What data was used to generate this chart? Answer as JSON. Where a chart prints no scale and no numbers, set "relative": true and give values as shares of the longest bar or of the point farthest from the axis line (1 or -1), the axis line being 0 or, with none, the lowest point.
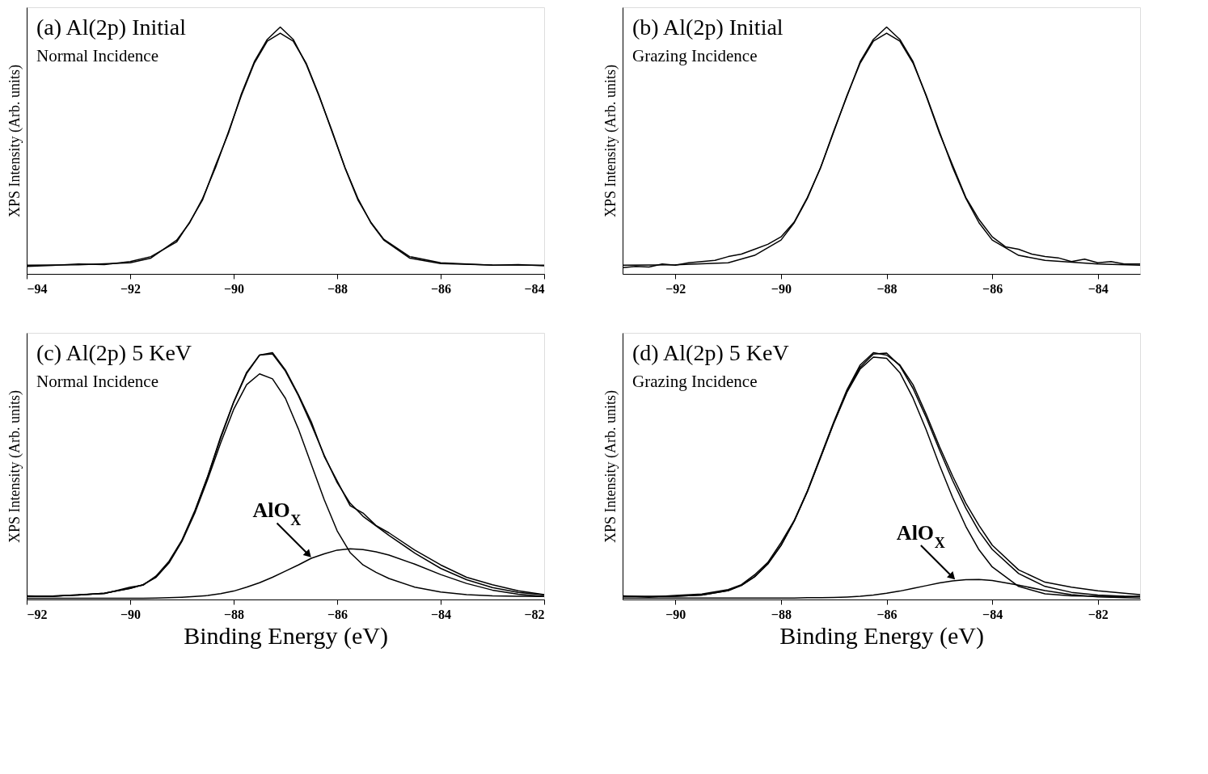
{
  "chart_data": [
    {
      "type": "line",
      "title": "(a) Al(2p)  Initial",
      "subtitle": "Normal Incidence",
      "ylabel": "XPS Intensity (Arb. units)",
      "relative": true,
      "tick_labels": "x",
      "legend": false,
      "grid": false,
      "xlim": [
        -94,
        -84
      ],
      "xticks": [
        -94,
        -92,
        -90,
        -88,
        -86,
        -84
      ],
      "series": [
        {
          "color": "#000000",
          "x": [
            -94,
            -93.5,
            -93,
            -92.5,
            -92,
            -91.6,
            -91.1,
            -90.85,
            -90.6,
            -90.35,
            -90.1,
            -89.85,
            -89.6,
            -89.35,
            -89.1,
            -88.85,
            -88.6,
            -88.35,
            -88.1,
            -87.85,
            -87.6,
            -87.35,
            -87.1,
            -86.6,
            -86,
            -85.5,
            -85,
            -84.5,
            -84
          ],
          "values": [
            0.03,
            0.034,
            0.04,
            0.038,
            0.05,
            0.07,
            0.13,
            0.21,
            0.3,
            0.44,
            0.57,
            0.73,
            0.86,
            0.95,
            1.0,
            0.95,
            0.85,
            0.72,
            0.58,
            0.43,
            0.3,
            0.21,
            0.14,
            0.07,
            0.045,
            0.04,
            0.035,
            0.038,
            0.033
          ]
        },
        {
          "color": "#000000",
          "x": [
            -94,
            -93,
            -92,
            -91.6,
            -91.1,
            -90.85,
            -90.6,
            -90.35,
            -90.1,
            -89.85,
            -89.6,
            -89.35,
            -89.1,
            -88.85,
            -88.6,
            -88.35,
            -88.1,
            -87.85,
            -87.6,
            -87.35,
            -87.1,
            -86.6,
            -86,
            -85,
            -84
          ],
          "values": [
            0.035,
            0.037,
            0.045,
            0.064,
            0.137,
            0.207,
            0.306,
            0.431,
            0.576,
            0.723,
            0.854,
            0.943,
            0.975,
            0.943,
            0.854,
            0.723,
            0.576,
            0.431,
            0.306,
            0.207,
            0.137,
            0.064,
            0.042,
            0.036,
            0.035
          ]
        }
      ]
    },
    {
      "type": "line",
      "title": "(b) Al(2p) Initial",
      "subtitle": "Grazing Incidence",
      "ylabel": "XPS Intensity (Arb. units)",
      "relative": true,
      "tick_labels": "x",
      "legend": false,
      "grid": false,
      "xlim": [
        -93,
        -83.2
      ],
      "xticks": [
        -92,
        -90,
        -88,
        -86,
        -84
      ],
      "series": [
        {
          "color": "#000000",
          "x": [
            -93,
            -92.75,
            -92.5,
            -92.25,
            -92,
            -91.75,
            -91.5,
            -91.25,
            -91,
            -90.75,
            -90.5,
            -90.25,
            -90,
            -89.75,
            -89.5,
            -89.25,
            -89,
            -88.75,
            -88.5,
            -88.25,
            -88,
            -87.75,
            -87.5,
            -87.25,
            -87,
            -86.75,
            -86.5,
            -86.25,
            -86,
            -85.75,
            -85.5,
            -85.25,
            -85,
            -84.75,
            -84.5,
            -84.25,
            -84,
            -83.75,
            -83.5,
            -83.2
          ],
          "values": [
            0.025,
            0.03,
            0.028,
            0.04,
            0.035,
            0.045,
            0.05,
            0.055,
            0.07,
            0.08,
            0.1,
            0.12,
            0.15,
            0.21,
            0.31,
            0.43,
            0.58,
            0.72,
            0.86,
            0.95,
            1.0,
            0.95,
            0.86,
            0.72,
            0.57,
            0.44,
            0.31,
            0.22,
            0.15,
            0.11,
            0.1,
            0.08,
            0.07,
            0.065,
            0.05,
            0.06,
            0.045,
            0.05,
            0.04,
            0.04
          ]
        },
        {
          "color": "#000000",
          "x": [
            -93,
            -92,
            -91,
            -90.5,
            -90,
            -89.75,
            -89.5,
            -89.25,
            -89,
            -88.75,
            -88.5,
            -88.25,
            -88,
            -87.75,
            -87.5,
            -87.25,
            -87,
            -86.75,
            -86.5,
            -86.25,
            -86,
            -85.5,
            -85,
            -84,
            -83.2
          ],
          "values": [
            0.035,
            0.037,
            0.045,
            0.075,
            0.137,
            0.207,
            0.306,
            0.431,
            0.576,
            0.723,
            0.854,
            0.943,
            0.975,
            0.943,
            0.854,
            0.723,
            0.576,
            0.431,
            0.306,
            0.207,
            0.137,
            0.075,
            0.055,
            0.04,
            0.035
          ]
        }
      ]
    },
    {
      "type": "line",
      "title": "(c) Al(2p) 5 KeV",
      "subtitle": "Normal Incidence",
      "xlabel": "Binding Energy (eV)",
      "ylabel": "XPS Intensity (Arb. units)",
      "relative": true,
      "tick_labels": "x",
      "legend": false,
      "grid": false,
      "xlim": [
        -92,
        -82
      ],
      "xticks": [
        -92,
        -90,
        -88,
        -86,
        -84,
        -82
      ],
      "x": [
        -92,
        -91.5,
        -91,
        -90.5,
        -90,
        -89.75,
        -89.5,
        -89.25,
        -89,
        -88.75,
        -88.5,
        -88.25,
        -88,
        -87.75,
        -87.5,
        -87.25,
        -87,
        -86.75,
        -86.5,
        -86.25,
        -86,
        -85.75,
        -85.5,
        -85.25,
        -85,
        -84.5,
        -84,
        -83.5,
        -83,
        -82.5,
        -82
      ],
      "annotations": [
        {
          "text": "AlO$_{X}$",
          "x": -86.57,
          "y": 0.185
        }
      ],
      "series": [
        {
          "color": "#000000",
          "values": [
            0.015,
            0.012,
            0.02,
            0.024,
            0.05,
            0.058,
            0.095,
            0.155,
            0.24,
            0.36,
            0.5,
            0.66,
            0.8,
            0.92,
            0.99,
            1.0,
            0.93,
            0.83,
            0.72,
            0.58,
            0.48,
            0.38,
            0.35,
            0.3,
            0.27,
            0.2,
            0.14,
            0.09,
            0.06,
            0.035,
            0.02
          ]
        },
        {
          "color": "#000000",
          "values": [
            0.012,
            0.014,
            0.018,
            0.025,
            0.045,
            0.06,
            0.091,
            0.15,
            0.239,
            0.357,
            0.499,
            0.654,
            0.799,
            0.915,
            0.99,
            0.995,
            0.925,
            0.826,
            0.709,
            0.584,
            0.473,
            0.39,
            0.337,
            0.298,
            0.26,
            0.188,
            0.126,
            0.08,
            0.048,
            0.029,
            0.019
          ]
        },
        {
          "color": "#000000",
          "values": [
            0.012,
            0.014,
            0.018,
            0.025,
            0.045,
            0.06,
            0.09,
            0.148,
            0.235,
            0.35,
            0.488,
            0.635,
            0.77,
            0.87,
            0.914,
            0.894,
            0.815,
            0.691,
            0.547,
            0.404,
            0.278,
            0.19,
            0.14,
            0.11,
            0.085,
            0.05,
            0.03,
            0.02,
            0.015,
            0.013,
            0.012
          ]
        },
        {
          "color": "#000000",
          "values": [
            0.005,
            0.005,
            0.005,
            0.005,
            0.005,
            0.005,
            0.006,
            0.007,
            0.009,
            0.012,
            0.016,
            0.024,
            0.034,
            0.05,
            0.068,
            0.09,
            0.115,
            0.14,
            0.167,
            0.185,
            0.2,
            0.205,
            0.202,
            0.193,
            0.18,
            0.143,
            0.101,
            0.065,
            0.038,
            0.021,
            0.012
          ]
        }
      ]
    },
    {
      "type": "line",
      "title": "(d) Al(2p) 5 KeV",
      "subtitle": "Grazing Incidence",
      "xlabel": "Binding Energy (eV)",
      "ylabel": "XPS Intensity (Arb. units)",
      "relative": true,
      "tick_labels": "x",
      "legend": false,
      "grid": false,
      "xlim": [
        -91,
        -81.2
      ],
      "xticks": [
        -90,
        -88,
        -86,
        -84,
        -82
      ],
      "x": [
        -91,
        -90.5,
        -90,
        -89.5,
        -89,
        -88.75,
        -88.5,
        -88.25,
        -88,
        -87.75,
        -87.5,
        -87.25,
        -87,
        -86.75,
        -86.5,
        -86.25,
        -86,
        -85.75,
        -85.5,
        -85.25,
        -85,
        -84.75,
        -84.5,
        -84.25,
        -84,
        -83.5,
        -83,
        -82.5,
        -82,
        -81.5,
        -81.2
      ],
      "annotations": [
        {
          "text": "AlO$_{X}$",
          "x": -84.77,
          "y": 0.095
        }
      ],
      "series": [
        {
          "color": "#000000",
          "values": [
            0.015,
            0.01,
            0.016,
            0.022,
            0.04,
            0.06,
            0.1,
            0.15,
            0.23,
            0.32,
            0.44,
            0.58,
            0.72,
            0.85,
            0.95,
            1.0,
            0.99,
            0.95,
            0.87,
            0.75,
            0.62,
            0.5,
            0.39,
            0.3,
            0.22,
            0.12,
            0.07,
            0.05,
            0.035,
            0.025,
            0.02
          ]
        },
        {
          "color": "#000000",
          "values": [
            0.012,
            0.012,
            0.013,
            0.018,
            0.036,
            0.057,
            0.092,
            0.144,
            0.219,
            0.318,
            0.438,
            0.576,
            0.716,
            0.844,
            0.941,
            0.994,
            0.998,
            0.947,
            0.855,
            0.737,
            0.606,
            0.482,
            0.37,
            0.276,
            0.203,
            0.105,
            0.053,
            0.029,
            0.018,
            0.013,
            0.012
          ]
        },
        {
          "color": "#000000",
          "values": [
            0.012,
            0.012,
            0.013,
            0.018,
            0.036,
            0.057,
            0.092,
            0.144,
            0.219,
            0.318,
            0.437,
            0.575,
            0.714,
            0.84,
            0.934,
            0.982,
            0.977,
            0.919,
            0.816,
            0.687,
            0.545,
            0.413,
            0.296,
            0.201,
            0.132,
            0.053,
            0.023,
            0.015,
            0.013,
            0.012,
            0.012
          ]
        },
        {
          "color": "#000000",
          "values": [
            0.006,
            0.006,
            0.006,
            0.006,
            0.006,
            0.006,
            0.006,
            0.006,
            0.006,
            0.006,
            0.007,
            0.007,
            0.008,
            0.01,
            0.013,
            0.018,
            0.025,
            0.034,
            0.045,
            0.056,
            0.067,
            0.075,
            0.08,
            0.081,
            0.077,
            0.058,
            0.036,
            0.02,
            0.011,
            0.007,
            0.006
          ]
        }
      ]
    }
  ]
}
